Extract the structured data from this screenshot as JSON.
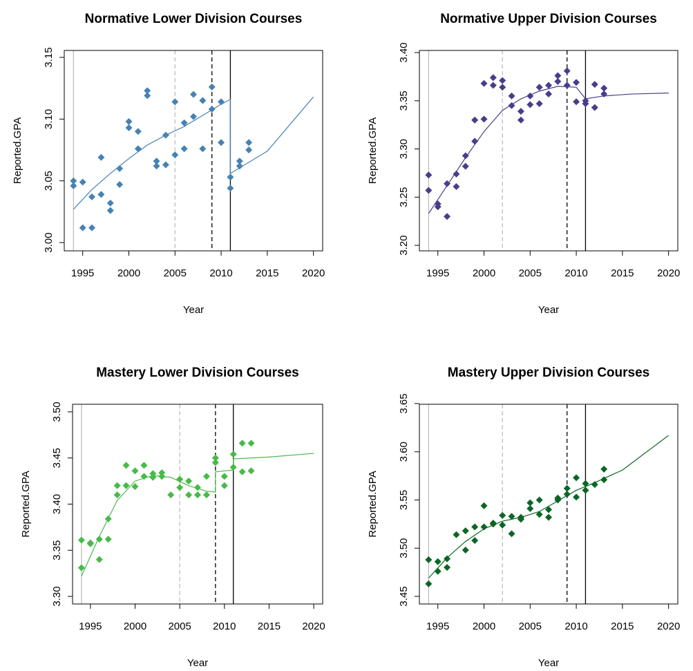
{
  "chart_data": [
    {
      "type": "scatter",
      "title": "Normative Lower Division Courses",
      "xlabel": "Year",
      "ylabel": "Reported.GPA",
      "color": "#4682b4",
      "xlim": [
        1993,
        2021
      ],
      "ylim": [
        2.9933,
        3.1556
      ],
      "xticks": [
        1995,
        2000,
        2005,
        2010,
        2015,
        2020
      ],
      "yticks": [
        {
          "value": 3,
          "label": "3.00"
        },
        3.05,
        {
          "value": 3.1,
          "label": "3.10"
        },
        3.15
      ],
      "points": {
        "x": [
          1994,
          1994,
          1995,
          1995,
          1996,
          1996,
          1997,
          1997,
          1998,
          1998,
          1999,
          1999,
          2000,
          2000,
          2001,
          2001,
          2002,
          2002,
          2003,
          2003,
          2004,
          2004,
          2005,
          2005,
          2006,
          2006,
          2007,
          2007,
          2008,
          2008,
          2009,
          2009,
          2010,
          2010,
          2011,
          2011,
          2012,
          2012,
          2013,
          2013
        ],
        "values": [
          3.05,
          3.046,
          3.049,
          3.012,
          3.037,
          3.012,
          3.069,
          3.039,
          3.032,
          3.026,
          3.06,
          3.047,
          3.098,
          3.093,
          3.09,
          3.076,
          3.123,
          3.119,
          3.066,
          3.062,
          3.087,
          3.063,
          3.114,
          3.071,
          3.097,
          3.076,
          3.12,
          3.102,
          3.115,
          3.076,
          3.126,
          3.108,
          3.114,
          3.081,
          3.053,
          3.044,
          3.066,
          3.062,
          3.081,
          3.075
        ]
      },
      "fit": {
        "x": [
          1994,
          1996,
          1998,
          2000,
          2002,
          2004,
          2006,
          2008,
          2010,
          2011,
          2011,
          2015,
          2020
        ],
        "values": [
          3.027,
          3.043,
          3.056,
          3.068,
          3.079,
          3.087,
          3.094,
          3.103,
          3.112,
          3.116,
          3.056,
          3.074,
          3.118
        ]
      },
      "vlines": [
        {
          "x": 1994,
          "color": "#bebebe",
          "dash": false
        },
        {
          "x": 2005,
          "color": "#bebebe",
          "dash": true
        },
        {
          "x": 2009,
          "color": "#000000",
          "dash": true
        },
        {
          "x": 2011,
          "color": "#000000",
          "dash": false
        }
      ]
    },
    {
      "type": "scatter",
      "title": "Normative Upper Division Courses",
      "xlabel": "Year",
      "ylabel": "Reported.GPA",
      "color": "#483d8b",
      "xlim": [
        1993,
        2021
      ],
      "ylim": [
        3.1943,
        3.4022
      ],
      "xticks": [
        1995,
        2000,
        2005,
        2010,
        2015,
        2020
      ],
      "yticks": [
        {
          "value": 3.2,
          "label": "3.20"
        },
        3.25,
        {
          "value": 3.3,
          "label": "3.30"
        },
        3.35,
        {
          "value": 3.4,
          "label": "3.40"
        }
      ],
      "points": {
        "x": [
          1994,
          1994,
          1995,
          1995,
          1996,
          1996,
          1997,
          1997,
          1998,
          1998,
          1999,
          1999,
          2000,
          2000,
          2001,
          2001,
          2002,
          2002,
          2003,
          2003,
          2004,
          2004,
          2005,
          2005,
          2006,
          2006,
          2007,
          2007,
          2008,
          2008,
          2009,
          2009,
          2010,
          2010,
          2011,
          2011,
          2012,
          2012,
          2013,
          2013
        ],
        "values": [
          3.273,
          3.257,
          3.243,
          3.24,
          3.264,
          3.23,
          3.274,
          3.261,
          3.293,
          3.282,
          3.33,
          3.308,
          3.368,
          3.331,
          3.374,
          3.366,
          3.371,
          3.364,
          3.355,
          3.345,
          3.339,
          3.33,
          3.355,
          3.346,
          3.364,
          3.347,
          3.366,
          3.357,
          3.376,
          3.37,
          3.381,
          3.366,
          3.369,
          3.349,
          3.35,
          3.347,
          3.367,
          3.343,
          3.363,
          3.357
        ]
      },
      "fit": {
        "x": [
          1994,
          1996,
          1998,
          2000,
          2002,
          2004,
          2006,
          2008,
          2010,
          2011,
          2013,
          2016,
          2020
        ],
        "values": [
          3.233,
          3.262,
          3.291,
          3.318,
          3.34,
          3.352,
          3.36,
          3.365,
          3.364,
          3.352,
          3.355,
          3.357,
          3.358
        ]
      },
      "vlines": [
        {
          "x": 1994,
          "color": "#bebebe",
          "dash": false
        },
        {
          "x": 2002,
          "color": "#bebebe",
          "dash": true
        },
        {
          "x": 2009,
          "color": "#000000",
          "dash": true
        },
        {
          "x": 2011,
          "color": "#000000",
          "dash": false
        }
      ]
    },
    {
      "type": "scatter",
      "title": "Mastery Lower Division Courses",
      "xlabel": "Year",
      "ylabel": "Reported.GPA",
      "color": "#46bb47",
      "xlim": [
        1993,
        2021
      ],
      "ylim": [
        3.2918,
        3.5082
      ],
      "xticks": [
        1995,
        2000,
        2005,
        2010,
        2015,
        2020
      ],
      "yticks": [
        {
          "value": 3.3,
          "label": "3.30"
        },
        3.35,
        {
          "value": 3.4,
          "label": "3.40"
        },
        3.45,
        {
          "value": 3.5,
          "label": "3.50"
        }
      ],
      "points": {
        "x": [
          1994,
          1994,
          1995,
          1995,
          1996,
          1996,
          1997,
          1997,
          1998,
          1998,
          1999,
          1999,
          2000,
          2000,
          2001,
          2001,
          2002,
          2002,
          2003,
          2003,
          2004,
          2005,
          2005,
          2006,
          2006,
          2007,
          2007,
          2008,
          2008,
          2009,
          2009,
          2010,
          2010,
          2011,
          2011,
          2012,
          2012,
          2013,
          2013
        ],
        "values": [
          3.361,
          3.331,
          3.358,
          3.357,
          3.362,
          3.34,
          3.384,
          3.362,
          3.42,
          3.41,
          3.442,
          3.42,
          3.436,
          3.419,
          3.442,
          3.43,
          3.433,
          3.429,
          3.434,
          3.43,
          3.41,
          3.427,
          3.418,
          3.425,
          3.41,
          3.418,
          3.41,
          3.43,
          3.41,
          3.45,
          3.445,
          3.43,
          3.42,
          3.454,
          3.44,
          3.466,
          3.435,
          3.466,
          3.436
        ]
      },
      "fit": {
        "x": [
          1994,
          1996,
          1998,
          2000,
          2002,
          2004,
          2006,
          2008,
          2009,
          2009,
          2011,
          2011,
          2015,
          2020
        ],
        "values": [
          3.322,
          3.365,
          3.404,
          3.425,
          3.431,
          3.429,
          3.42,
          3.414,
          3.413,
          3.435,
          3.437,
          3.449,
          3.451,
          3.455
        ]
      },
      "vlines": [
        {
          "x": 1994,
          "color": "#bebebe",
          "dash": false
        },
        {
          "x": 2005,
          "color": "#bebebe",
          "dash": true
        },
        {
          "x": 2009,
          "color": "#000000",
          "dash": true
        },
        {
          "x": 2011,
          "color": "#000000",
          "dash": false
        }
      ]
    },
    {
      "type": "scatter",
      "title": "Mastery Upper Division Courses",
      "xlabel": "Year",
      "ylabel": "Reported.GPA",
      "color": "#0b6623",
      "xlim": [
        1993,
        2021
      ],
      "ylim": [
        3.4421,
        3.6493
      ],
      "xticks": [
        1995,
        2000,
        2005,
        2010,
        2015,
        2020
      ],
      "yticks": [
        3.45,
        {
          "value": 3.5,
          "label": "3.50"
        },
        3.55,
        {
          "value": 3.6,
          "label": "3.60"
        },
        3.65
      ],
      "points": {
        "x": [
          1994,
          1994,
          1995,
          1995,
          1996,
          1996,
          1997,
          1998,
          1998,
          1999,
          1999,
          2000,
          2000,
          2001,
          2001,
          2002,
          2002,
          2003,
          2003,
          2004,
          2004,
          2005,
          2005,
          2006,
          2006,
          2007,
          2007,
          2008,
          2008,
          2009,
          2009,
          2010,
          2010,
          2011,
          2011,
          2012,
          2013,
          2013
        ],
        "values": [
          3.488,
          3.463,
          3.486,
          3.476,
          3.489,
          3.48,
          3.514,
          3.518,
          3.498,
          3.522,
          3.508,
          3.544,
          3.522,
          3.526,
          3.525,
          3.534,
          3.524,
          3.533,
          3.515,
          3.532,
          3.53,
          3.547,
          3.541,
          3.55,
          3.535,
          3.54,
          3.532,
          3.552,
          3.55,
          3.562,
          3.556,
          3.573,
          3.553,
          3.567,
          3.56,
          3.566,
          3.582,
          3.571
        ]
      },
      "fit": {
        "x": [
          1994,
          1996,
          1998,
          2000,
          2002,
          2004,
          2006,
          2008,
          2010,
          2012,
          2015,
          2020
        ],
        "values": [
          3.469,
          3.49,
          3.507,
          3.52,
          3.528,
          3.532,
          3.538,
          3.549,
          3.56,
          3.568,
          3.581,
          3.617
        ]
      },
      "vlines": [
        {
          "x": 1994,
          "color": "#bebebe",
          "dash": false
        },
        {
          "x": 2002,
          "color": "#bebebe",
          "dash": true
        },
        {
          "x": 2009,
          "color": "#000000",
          "dash": true
        },
        {
          "x": 2011,
          "color": "#000000",
          "dash": false
        }
      ]
    }
  ]
}
